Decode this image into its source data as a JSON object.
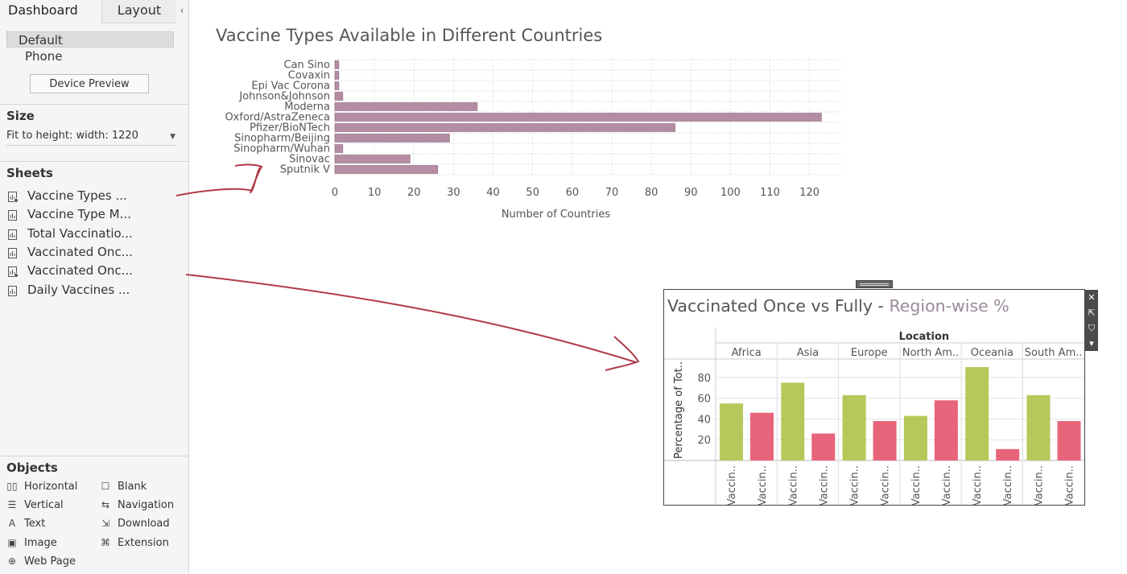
{
  "sidebar": {
    "tabs": {
      "dashboard": "Dashboard",
      "layout": "Layout",
      "collapse": "‹"
    },
    "devices": [
      "Default",
      "Phone"
    ],
    "device_preview_label": "Device Preview",
    "size": {
      "title": "Size",
      "value": "Fit to height: width: 1220"
    },
    "sheets": {
      "title": "Sheets",
      "items": [
        {
          "label": "Vaccine Types ...",
          "used": true
        },
        {
          "label": "Vaccine Type M...",
          "used": false
        },
        {
          "label": "Total Vaccinatio...",
          "used": false
        },
        {
          "label": "Vaccinated Onc...",
          "used": false
        },
        {
          "label": "Vaccinated Onc...",
          "used": true
        },
        {
          "label": "Daily Vaccines ...",
          "used": false
        }
      ]
    },
    "objects": {
      "title": "Objects",
      "items": [
        {
          "label": "Horizontal",
          "icon": "horizontal-icon",
          "glyph": "▯▯"
        },
        {
          "label": "Blank",
          "icon": "blank-icon",
          "glyph": "☐"
        },
        {
          "label": "Vertical",
          "icon": "vertical-icon",
          "glyph": "☰"
        },
        {
          "label": "Navigation",
          "icon": "navigation-icon",
          "glyph": "⇆"
        },
        {
          "label": "Text",
          "icon": "text-icon",
          "glyph": "A"
        },
        {
          "label": "Download",
          "icon": "download-icon",
          "glyph": "⇲"
        },
        {
          "label": "Image",
          "icon": "image-icon",
          "glyph": "▣"
        },
        {
          "label": "Extension",
          "icon": "extension-icon",
          "glyph": "⌘"
        },
        {
          "label": "Web Page",
          "icon": "web-page-icon",
          "glyph": "⊕"
        }
      ]
    }
  },
  "float_tools": {
    "close": "✕",
    "open": "⇱",
    "filter": "⛉",
    "menu": "▾"
  },
  "colors": {
    "bar_top": "#b48ca3",
    "bar_top_stroke": "#8e6a82",
    "once": "#b5c95a",
    "fully": "#e8647a",
    "arrow": "#b03a48"
  },
  "chart_data": [
    {
      "type": "bar",
      "orientation": "horizontal",
      "title": "Vaccine Types Available in Different Countries",
      "xlabel": "Number of Countries",
      "ylabel": "",
      "categories": [
        "Can Sino",
        "Covaxin",
        "Epi Vac Corona",
        "Johnson&Johnson",
        "Moderna",
        "Oxford/AstraZeneca",
        "Pfizer/BioNTech",
        "Sinopharm/Beijing",
        "Sinopharm/Wuhan",
        "Sinovac",
        "Sputnik V"
      ],
      "values": [
        1,
        1,
        1,
        2,
        36,
        123,
        86,
        29,
        2,
        19,
        26
      ],
      "xlim": [
        0,
        128
      ],
      "xticks": [
        0,
        10,
        20,
        30,
        40,
        50,
        60,
        70,
        80,
        90,
        100,
        110,
        120
      ],
      "grid": true
    },
    {
      "type": "bar",
      "title": "Vaccinated Once vs Fully - ",
      "subtitle": "Region-wise %",
      "column_header": "Location",
      "ylabel": "Percentage of Tot..",
      "categories": [
        "Africa",
        "Asia",
        "Europe",
        "North Am..",
        "Oceania",
        "South Am.."
      ],
      "series_labels": [
        "Vaccin..",
        "Vaccin.."
      ],
      "series": [
        {
          "values": [
            55,
            75,
            63,
            43,
            90,
            63
          ]
        },
        {
          "values": [
            46,
            26,
            38,
            58,
            11,
            38
          ]
        }
      ],
      "ylim": [
        0,
        97
      ],
      "yticks": [
        20,
        40,
        60,
        80
      ]
    }
  ]
}
